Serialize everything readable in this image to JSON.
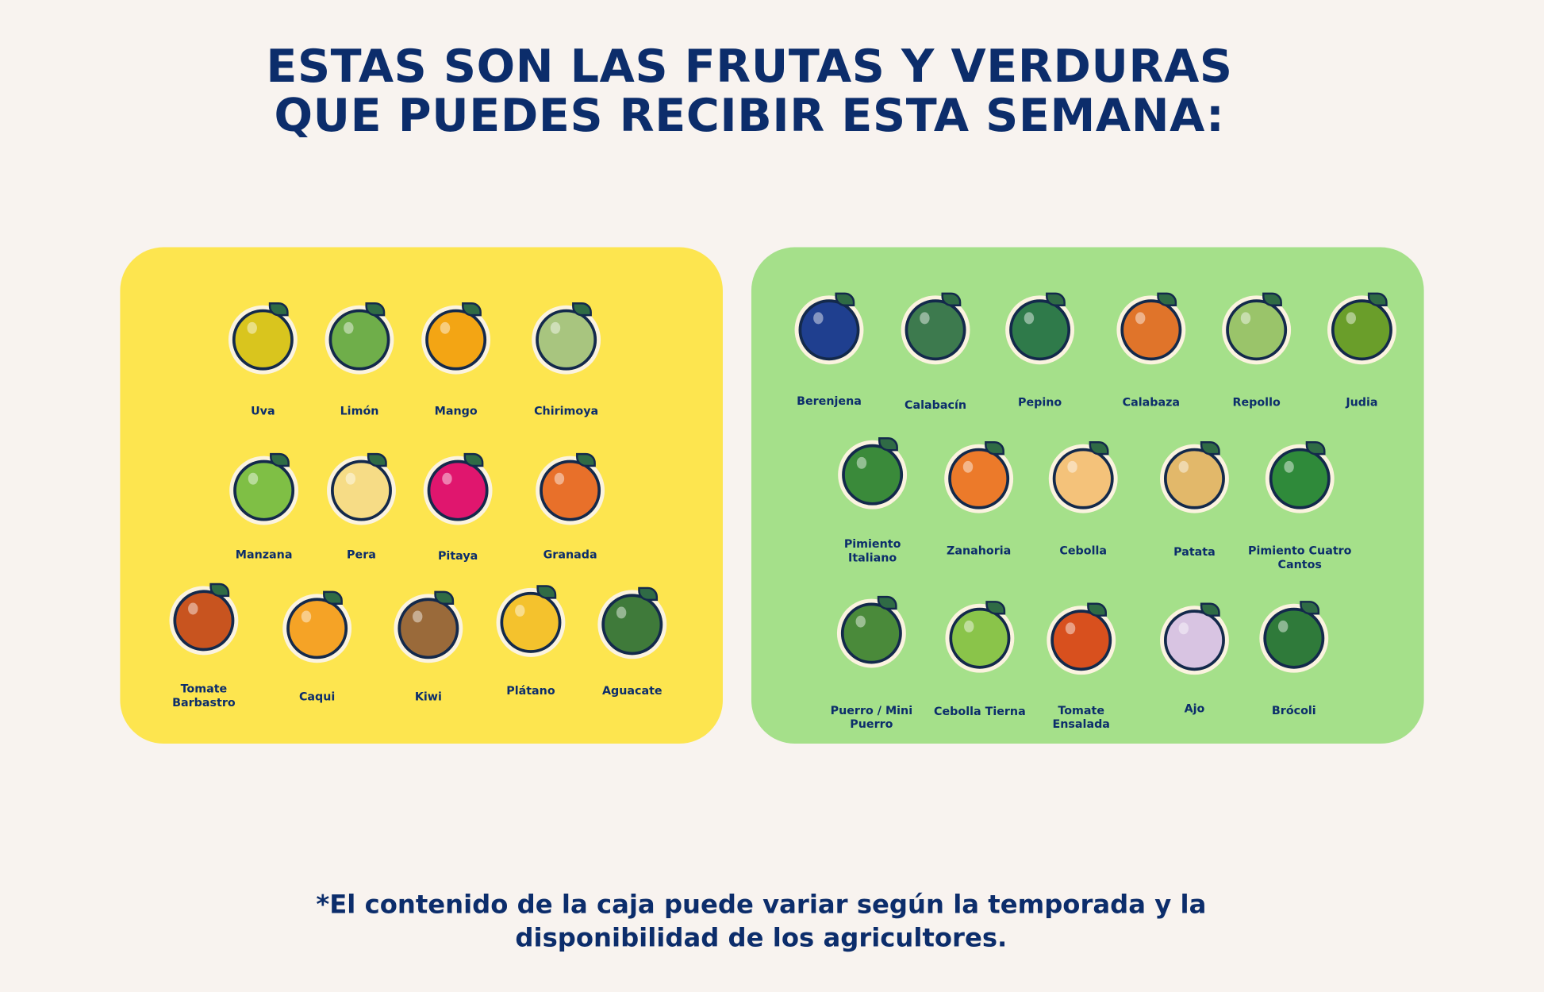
{
  "title": {
    "line1": "ESTAS SON LAS FRUTAS Y VERDURAS",
    "line2": "QUE PUEDES RECIBIR ESTA SEMANA:"
  },
  "colors": {
    "background": "#f8f3ef",
    "text": "#0c2d6b",
    "fruits_panel": "#fde54f",
    "vegetables_panel": "#a5e08a"
  },
  "fruits": [
    {
      "label": "Uva",
      "icon": "grapes-icon",
      "color": "#d9c51e"
    },
    {
      "label": "Limón",
      "icon": "lime-icon",
      "color": "#6fae4a"
    },
    {
      "label": "Mango",
      "icon": "mango-icon",
      "color": "#f3a514"
    },
    {
      "label": "Chirimoya",
      "icon": "custard-apple-icon",
      "color": "#a8c57f"
    },
    {
      "label": "Manzana",
      "icon": "apple-icon",
      "color": "#7fbf45"
    },
    {
      "label": "Pera",
      "icon": "pear-icon",
      "color": "#f6dc86"
    },
    {
      "label": "Pitaya",
      "icon": "dragon-fruit-icon",
      "color": "#e0166e"
    },
    {
      "label": "Granada",
      "icon": "pomegranate-icon",
      "color": "#e8702a"
    },
    {
      "label": "Tomate\nBarbastro",
      "icon": "tomato-icon",
      "color": "#c8541f"
    },
    {
      "label": "Caqui",
      "icon": "persimmon-icon",
      "color": "#f5a326"
    },
    {
      "label": "Kiwi",
      "icon": "kiwi-icon",
      "color": "#9a6a3a"
    },
    {
      "label": "Plátano",
      "icon": "banana-icon",
      "color": "#f4c22d"
    },
    {
      "label": "Aguacate",
      "icon": "avocado-icon",
      "color": "#3f7a3a"
    }
  ],
  "vegetables": [
    {
      "label": "Berenjena",
      "icon": "eggplant-icon",
      "color": "#1f3f8f"
    },
    {
      "label": "Calabacín",
      "icon": "zucchini-icon",
      "color": "#3d7a4e"
    },
    {
      "label": "Pepino",
      "icon": "cucumber-icon",
      "color": "#2f7a4a"
    },
    {
      "label": "Calabaza",
      "icon": "pumpkin-icon",
      "color": "#e0742a"
    },
    {
      "label": "Repollo",
      "icon": "cabbage-icon",
      "color": "#9ac46a"
    },
    {
      "label": "Judia",
      "icon": "green-bean-icon",
      "color": "#6a9e2a"
    },
    {
      "label": "Pimiento\nItaliano",
      "icon": "italian-pepper-icon",
      "color": "#3a8a3a"
    },
    {
      "label": "Zanahoria",
      "icon": "carrot-icon",
      "color": "#ec7a2a"
    },
    {
      "label": "Cebolla",
      "icon": "onion-icon",
      "color": "#f4c27a"
    },
    {
      "label": "Patata",
      "icon": "potato-icon",
      "color": "#e2b86a"
    },
    {
      "label": "Pimiento Cuatro\nCantos",
      "icon": "bell-pepper-icon",
      "color": "#2f8a3a"
    },
    {
      "label": "Puerro / Mini\nPuerro",
      "icon": "leek-icon",
      "color": "#4a8a3a"
    },
    {
      "label": "Cebolla Tierna",
      "icon": "spring-onion-icon",
      "color": "#8ac44a"
    },
    {
      "label": "Tomate\nEnsalada",
      "icon": "tomato-icon",
      "color": "#d8501e"
    },
    {
      "label": "Ajo",
      "icon": "garlic-icon",
      "color": "#d8c4e2"
    },
    {
      "label": "Brócoli",
      "icon": "broccoli-icon",
      "color": "#2f7a3a"
    }
  ],
  "footer": {
    "line1": "*El contenido de la caja puede variar según la temporada y la",
    "line2": "disponibilidad de los agricultores."
  }
}
